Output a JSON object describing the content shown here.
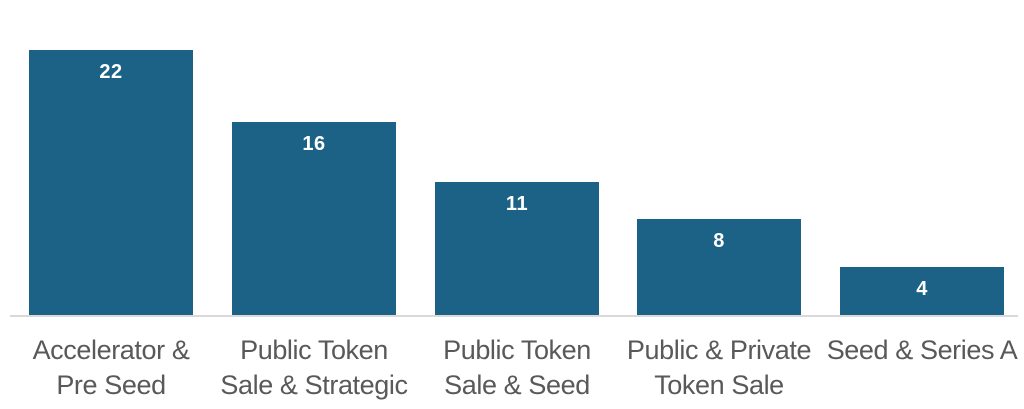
{
  "chart_data": {
    "type": "bar",
    "title": "",
    "xlabel": "",
    "ylabel": "",
    "categories": [
      "Accelerator & Pre Seed",
      "Public Token Sale & Strategic",
      "Public Token Sale & Seed",
      "Public & Private Token Sale",
      "Seed & Series A"
    ],
    "category_lines": [
      [
        "Accelerator &",
        "Pre Seed"
      ],
      [
        "Public Token",
        "Sale & Strategic"
      ],
      [
        "Public Token",
        "Sale & Seed"
      ],
      [
        "Public & Private",
        "Token Sale"
      ],
      [
        "Seed & Series A"
      ]
    ],
    "values": [
      22,
      16,
      11,
      8,
      4
    ],
    "ylim": [
      0,
      22
    ],
    "grid": false,
    "legend": false,
    "y_axis_visible": false,
    "value_labels": {
      "position": "inside-end",
      "bold": true,
      "color": "#ffffff"
    },
    "colors": {
      "bar": "#1b6286",
      "category_label": "#595959",
      "axis_line": "#d9d9d9",
      "background": "#ffffff"
    }
  }
}
